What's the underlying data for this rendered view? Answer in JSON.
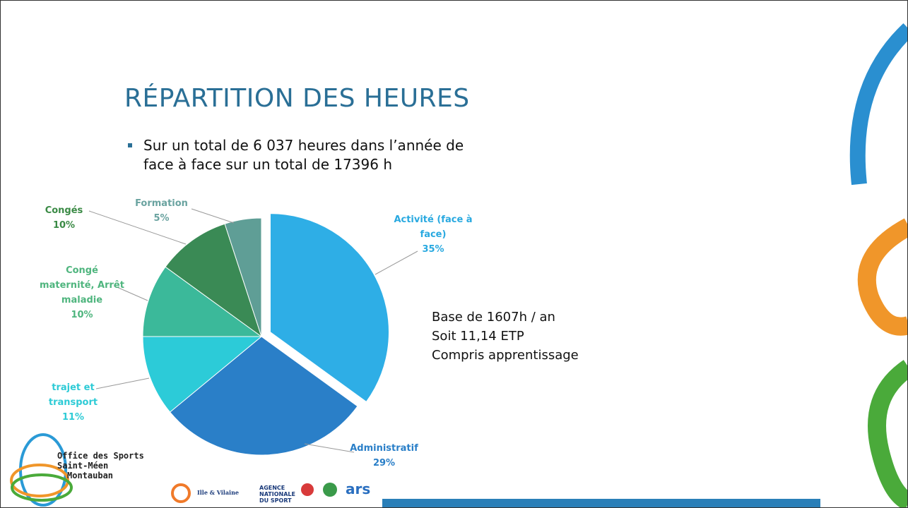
{
  "chart_data": {
    "type": "pie",
    "title": "RÉPARTITION DES HEURES",
    "subtitle": "Sur un total de 6 037 heures dans l’année de face à face sur un total de 17396 h",
    "categories": [
      "Activité (face à face)",
      "Administratif",
      "trajet et transport",
      "Congé maternité, Arrêt maladie",
      "Congés",
      "Formation"
    ],
    "values": [
      35,
      29,
      11,
      10,
      10,
      5
    ],
    "value_labels": [
      "35%",
      "29%",
      "11%",
      "10%",
      "10%",
      "5%"
    ],
    "colors": [
      "#2eaee6",
      "#2a7fc8",
      "#2ccbd8",
      "#3bb99a",
      "#3a8a55",
      "#5f9e96"
    ],
    "label_colors": [
      "#29a9e0",
      "#2a7fc8",
      "#2ecbd6",
      "#4fb57e",
      "#3a8a45",
      "#6aa3a0"
    ],
    "exploded": [
      0
    ],
    "annotations": [
      "Base de 1607h / an",
      "Soit 11,14 ETP",
      "Compris apprentissage"
    ]
  },
  "logo": [
    "Office des Sports",
    "Saint-Méen",
    "Montauban"
  ],
  "partners": [
    "Ille & Vilaine",
    "AGENCE NATIONALE DU SPORT",
    "ars"
  ]
}
